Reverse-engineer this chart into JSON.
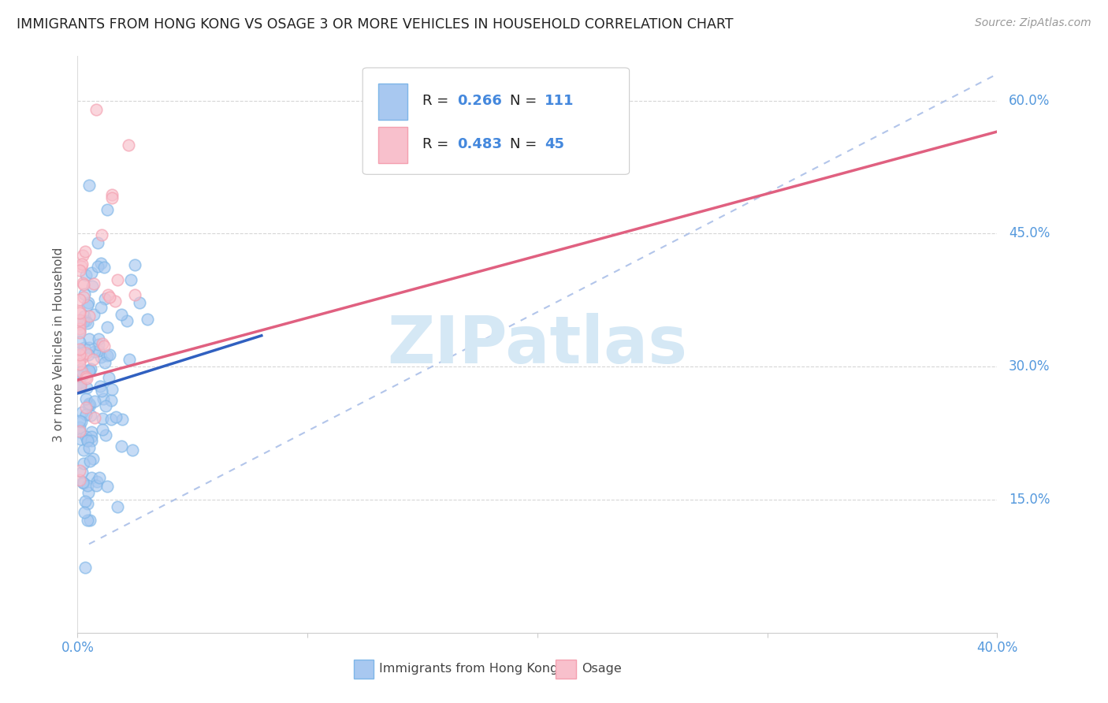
{
  "title": "IMMIGRANTS FROM HONG KONG VS OSAGE 3 OR MORE VEHICLES IN HOUSEHOLD CORRELATION CHART",
  "source": "Source: ZipAtlas.com",
  "ylabel": "3 or more Vehicles in Household",
  "xmin": 0.0,
  "xmax": 0.4,
  "ymin": 0.0,
  "ymax": 0.65,
  "x_tick_vals": [
    0.0,
    0.1,
    0.2,
    0.3,
    0.4
  ],
  "x_tick_labels": [
    "0.0%",
    "",
    "",
    "",
    "40.0%"
  ],
  "y_tick_vals": [
    0.15,
    0.3,
    0.45,
    0.6
  ],
  "y_tick_labels": [
    "15.0%",
    "30.0%",
    "45.0%",
    "60.0%"
  ],
  "legend_labels": [
    "Immigrants from Hong Kong",
    "Osage"
  ],
  "blue_scatter_face": "#A8C8F0",
  "blue_scatter_edge": "#7EB6E8",
  "pink_scatter_face": "#F8C0CC",
  "pink_scatter_edge": "#F4A0B0",
  "blue_line_color": "#3060C0",
  "pink_line_color": "#E06080",
  "dashed_line_color": "#AABFE8",
  "grid_color": "#CCCCCC",
  "tick_label_color": "#5599DD",
  "title_color": "#222222",
  "source_color": "#999999",
  "ylabel_color": "#555555",
  "watermark_color": "#D5E8F5",
  "watermark_text": "ZIPatlas",
  "legend_text_color": "#222222",
  "legend_value_color": "#4488DD",
  "blue_r": "0.266",
  "blue_n": "111",
  "pink_r": "0.483",
  "pink_n": "45",
  "blue_line_x": [
    0.0,
    0.08
  ],
  "blue_line_y": [
    0.27,
    0.335
  ],
  "pink_line_x": [
    0.0,
    0.4
  ],
  "pink_line_y": [
    0.285,
    0.565
  ],
  "diag_line_x": [
    0.005,
    0.4
  ],
  "diag_line_y": [
    0.1,
    0.63
  ]
}
